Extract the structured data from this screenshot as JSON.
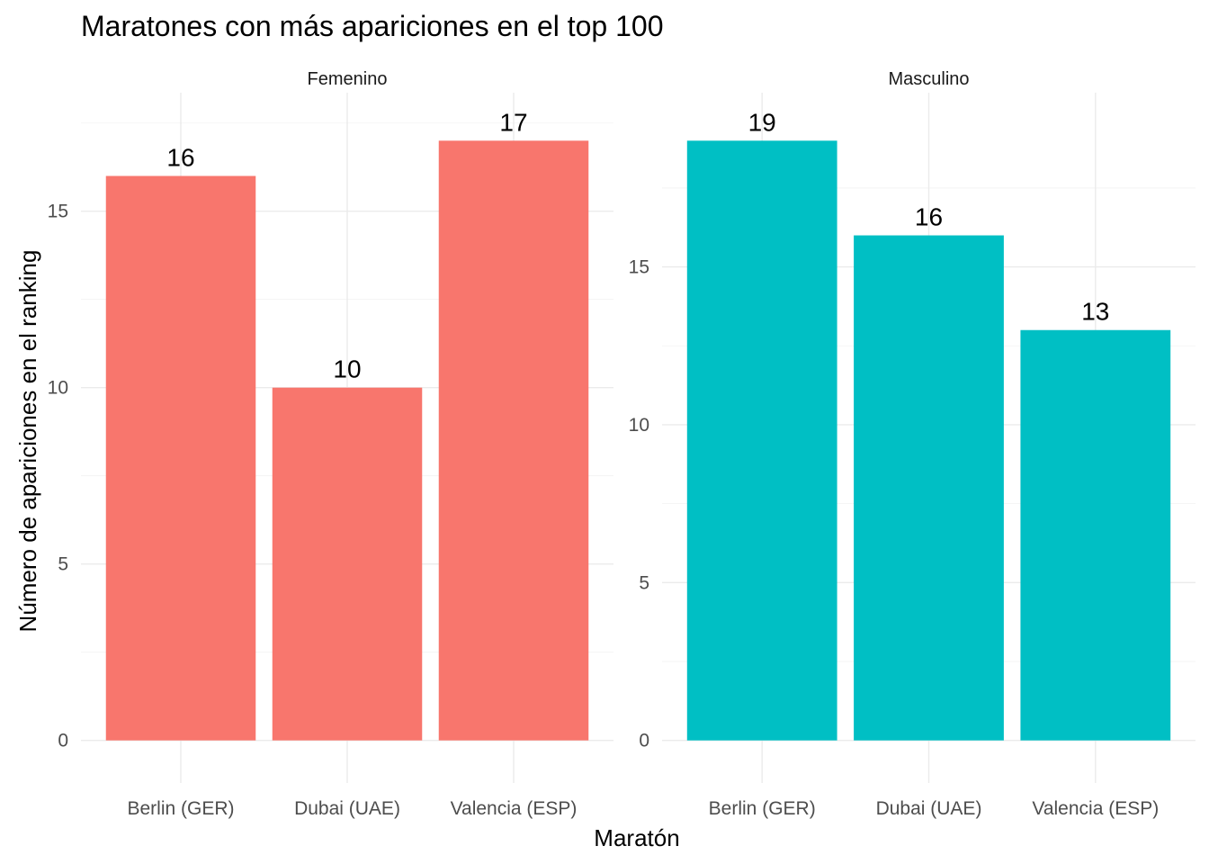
{
  "chart_data": {
    "type": "bar",
    "title": "Maratones con más apariciones en el top 100",
    "xlabel": "Maratón",
    "ylabel": "Número de apariciones en el ranking",
    "grid": true,
    "legend": "none",
    "categories": [
      "Berlin (GER)",
      "Dubai (UAE)",
      "Valencia (ESP)"
    ],
    "facets": [
      {
        "name": "Femenino",
        "color": "#F8766D",
        "values": [
          16,
          10,
          17
        ],
        "ylim": [
          0,
          17
        ],
        "yticks": [
          0,
          5,
          10,
          15
        ]
      },
      {
        "name": "Masculino",
        "color": "#00BFC4",
        "values": [
          19,
          16,
          13
        ],
        "ylim": [
          0,
          19
        ],
        "yticks": [
          0,
          5,
          10,
          15
        ]
      }
    ]
  }
}
